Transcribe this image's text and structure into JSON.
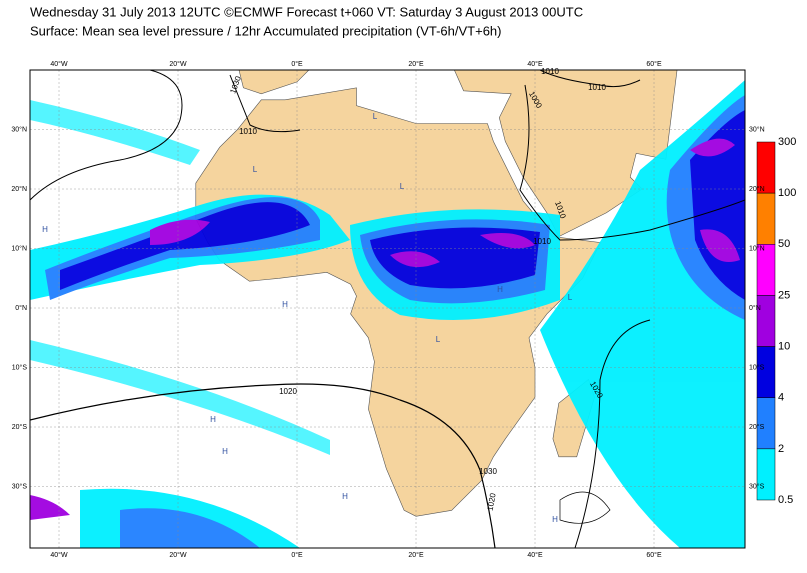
{
  "header": {
    "title": "Wednesday 31 July 2013 12UTC ©ECMWF Forecast t+060 VT: Saturday 3 August 2013 00UTC",
    "subtitle": "Surface: Mean sea level pressure / 12hr Accumulated precipitation (VT-6h/VT+6h)"
  },
  "map": {
    "lon_labels": [
      "40°W",
      "20°W",
      "0°E",
      "20°E",
      "40°E",
      "60°E"
    ],
    "lat_labels": [
      "30°N",
      "20°N",
      "10°N",
      "0°N",
      "10°S",
      "20°S",
      "30°S"
    ],
    "isobar_labels": [
      "1010",
      "1030",
      "1010",
      "1010",
      "1000",
      "1010",
      "1010",
      "1020",
      "1020",
      "1030",
      "1020"
    ],
    "pressure_centres": [
      "L",
      "L",
      "L",
      "L",
      "H",
      "H",
      "H",
      "H",
      "H",
      "H",
      "L",
      "H"
    ]
  },
  "legend": {
    "levels": [
      300,
      100,
      50,
      25,
      10,
      4,
      2,
      0.5
    ],
    "colors": [
      "#ff0000",
      "#ff8000",
      "#ff00ff",
      "#a000e0",
      "#0000e0",
      "#2080ff",
      "#00f0ff"
    ]
  }
}
